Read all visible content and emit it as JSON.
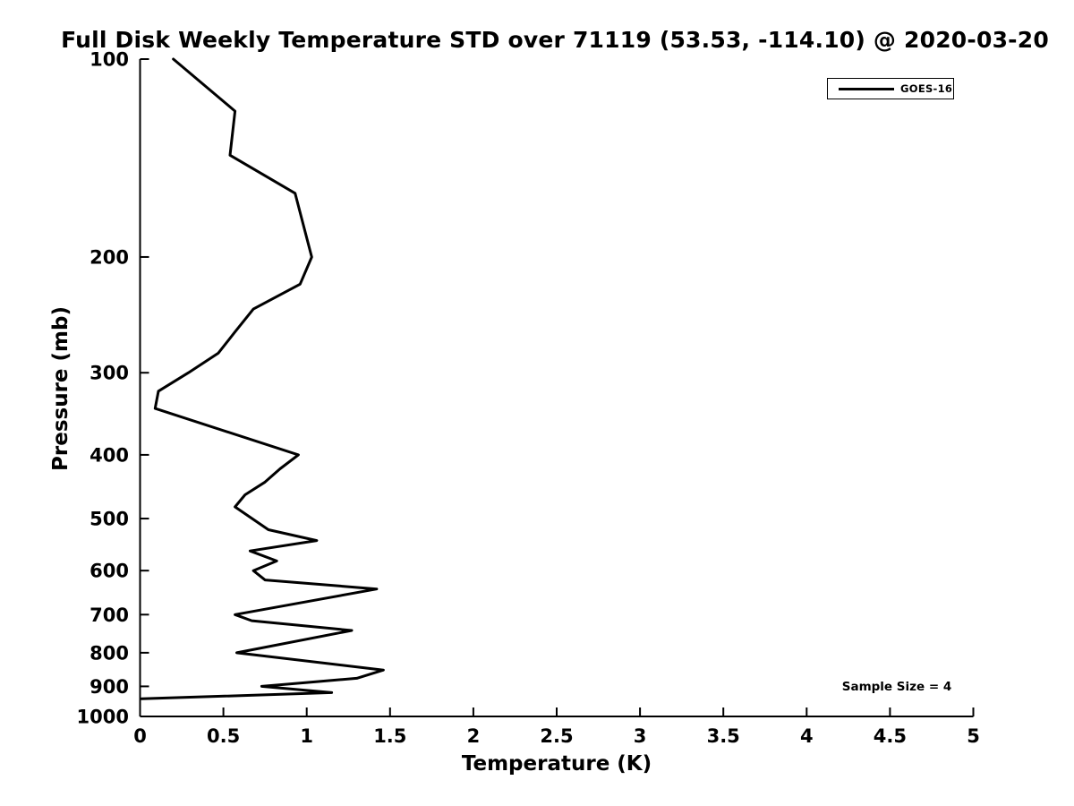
{
  "figure": {
    "background": "#ffffff",
    "foreground": "#000000"
  },
  "chart_data": {
    "type": "line",
    "title": "Full Disk Weekly Temperature STD over 71119 (53.53, -114.10) @ 2020-03-20",
    "xlabel": "Temperature (K)",
    "ylabel": "Pressure (mb)",
    "grid": false,
    "x_axis": {
      "min": 0,
      "max": 5,
      "scale": "linear",
      "tick_values": [
        0,
        0.5,
        1,
        1.5,
        2,
        2.5,
        3,
        3.5,
        4,
        4.5,
        5
      ],
      "tick_labels": [
        "0",
        "0.5",
        "1",
        "1.5",
        "2",
        "2.5",
        "3",
        "3.5",
        "4",
        "4.5",
        "5"
      ]
    },
    "y_axis": {
      "min": 100,
      "max": 1000,
      "scale": "log",
      "direction": "inverted",
      "tick_values": [
        100,
        200,
        300,
        400,
        500,
        600,
        700,
        800,
        900,
        1000
      ],
      "tick_labels": [
        "100",
        "200",
        "300",
        "400",
        "500",
        "600",
        "700",
        "800",
        "900",
        "1000"
      ]
    },
    "legend": {
      "position": "top-right",
      "entries": [
        {
          "label": "GOES-16",
          "color": "#000000"
        }
      ]
    },
    "annotations": [
      {
        "text": "Sample Size = 4",
        "position": "bottom-right"
      }
    ],
    "series": [
      {
        "name": "GOES-16",
        "color": "#000000",
        "line_width": 3,
        "points_pressure_mb_vs_std_K": [
          [
            100,
            0.2
          ],
          [
            120,
            0.57
          ],
          [
            140,
            0.54
          ],
          [
            160,
            0.93
          ],
          [
            200,
            1.03
          ],
          [
            220,
            0.96
          ],
          [
            240,
            0.68
          ],
          [
            260,
            0.57
          ],
          [
            280,
            0.47
          ],
          [
            300,
            0.29
          ],
          [
            320,
            0.11
          ],
          [
            340,
            0.09
          ],
          [
            400,
            0.95
          ],
          [
            420,
            0.84
          ],
          [
            440,
            0.75
          ],
          [
            460,
            0.63
          ],
          [
            480,
            0.57
          ],
          [
            520,
            0.77
          ],
          [
            540,
            1.06
          ],
          [
            560,
            0.66
          ],
          [
            580,
            0.82
          ],
          [
            600,
            0.68
          ],
          [
            620,
            0.75
          ],
          [
            640,
            1.42
          ],
          [
            700,
            0.57
          ],
          [
            715,
            0.67
          ],
          [
            740,
            1.27
          ],
          [
            800,
            0.58
          ],
          [
            850,
            1.46
          ],
          [
            875,
            1.3
          ],
          [
            900,
            0.73
          ],
          [
            920,
            1.15
          ],
          [
            940,
            0.01
          ]
        ]
      }
    ]
  }
}
